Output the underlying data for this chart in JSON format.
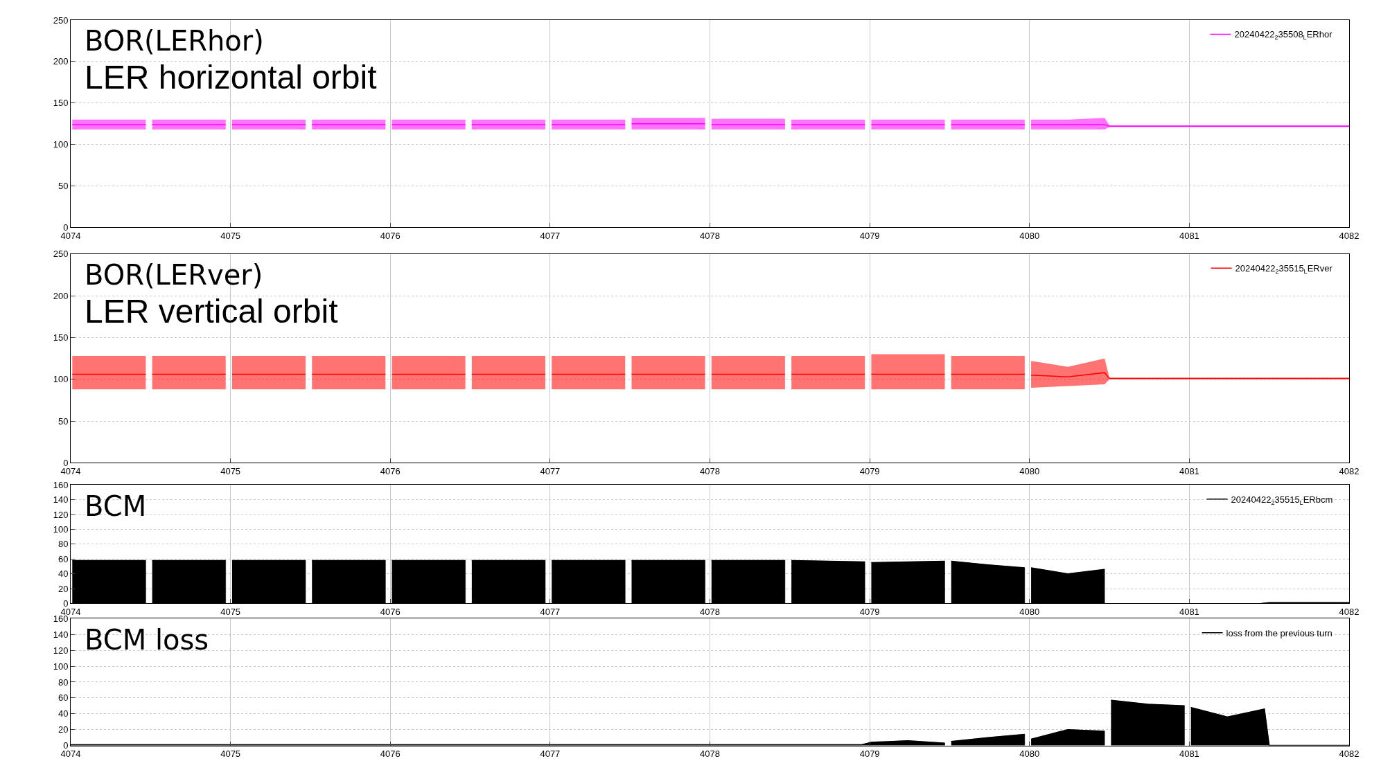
{
  "chart_data": [
    {
      "type": "line",
      "annotations": [
        "BOR(LERhor)",
        "LER horizontal orbit"
      ],
      "legend": "top right",
      "grid": true,
      "xlim": [
        4074,
        4082
      ],
      "xticks": [
        4074,
        4075,
        4076,
        4077,
        4078,
        4079,
        4080,
        4081,
        4082
      ],
      "ylim": [
        0,
        250
      ],
      "yticks": [
        0,
        50,
        100,
        150,
        200,
        250
      ],
      "series": [
        {
          "name": "20240422$_{2}$35508$_{L}$ERhor",
          "color": "#ff00ff",
          "x": [
            4074.01,
            4074.24,
            4074.47,
            4074.485,
            4074.51,
            4074.74,
            4074.97,
            4074.985,
            4075.01,
            4075.24,
            4075.47,
            4075.485,
            4075.51,
            4075.74,
            4075.97,
            4075.985,
            4076.01,
            4076.24,
            4076.47,
            4076.485,
            4076.51,
            4076.74,
            4076.97,
            4076.985,
            4077.01,
            4077.24,
            4077.47,
            4077.485,
            4077.51,
            4077.74,
            4077.97,
            4077.985,
            4078.01,
            4078.24,
            4078.47,
            4078.485,
            4078.51,
            4078.74,
            4078.97,
            4078.985,
            4079.01,
            4079.24,
            4079.47,
            4079.485,
            4079.51,
            4079.74,
            4079.97,
            4079.985,
            4080.01,
            4080.24,
            4080.47,
            4080.5,
            4081.25,
            4082
          ],
          "values": [
            124,
            124,
            124,
            null,
            124,
            124,
            124,
            null,
            124,
            124,
            124,
            null,
            124,
            124,
            124,
            null,
            124,
            124,
            124,
            null,
            124,
            124,
            124,
            null,
            124,
            124,
            124,
            null,
            125,
            125,
            125,
            null,
            124,
            124,
            124,
            null,
            124,
            124,
            124,
            null,
            124,
            124,
            124,
            null,
            124,
            124,
            124,
            null,
            124,
            124,
            124,
            122,
            122,
            122
          ],
          "lower": [
            118,
            118,
            118,
            null,
            118,
            118,
            118,
            null,
            118,
            118,
            118,
            null,
            118,
            118,
            118,
            null,
            118,
            118,
            118,
            null,
            118,
            118,
            118,
            null,
            118,
            118,
            118,
            null,
            118,
            118,
            118,
            null,
            118,
            118,
            118,
            null,
            118,
            118,
            118,
            null,
            118,
            118,
            118,
            null,
            118,
            118,
            118,
            null,
            118,
            118,
            118,
            121,
            121,
            121
          ],
          "upper": [
            130,
            130,
            130,
            null,
            130,
            130,
            130,
            null,
            130,
            130,
            130,
            null,
            130,
            130,
            130,
            null,
            130,
            130,
            130,
            null,
            130,
            130,
            130,
            null,
            130,
            130,
            130,
            null,
            132,
            132,
            132,
            null,
            131,
            131,
            131,
            null,
            130,
            130,
            130,
            null,
            130,
            130,
            130,
            null,
            130,
            130,
            130,
            null,
            130,
            130,
            132,
            123,
            123,
            123
          ]
        }
      ]
    },
    {
      "type": "line",
      "annotations": [
        "BOR(LERver)",
        "LER vertical orbit"
      ],
      "legend": "top right",
      "grid": true,
      "xlim": [
        4074,
        4082
      ],
      "xticks": [
        4074,
        4075,
        4076,
        4077,
        4078,
        4079,
        4080,
        4081,
        4082
      ],
      "ylim": [
        0,
        250
      ],
      "yticks": [
        0,
        50,
        100,
        150,
        200,
        250
      ],
      "series": [
        {
          "name": "20240422$_{2}$35515$_{L}$ERver",
          "color": "#ff0000",
          "x": [
            4074.01,
            4074.24,
            4074.47,
            4074.485,
            4074.51,
            4074.74,
            4074.97,
            4074.985,
            4075.01,
            4075.24,
            4075.47,
            4075.485,
            4075.51,
            4075.74,
            4075.97,
            4075.985,
            4076.01,
            4076.24,
            4076.47,
            4076.485,
            4076.51,
            4076.74,
            4076.97,
            4076.985,
            4077.01,
            4077.24,
            4077.47,
            4077.485,
            4077.51,
            4077.74,
            4077.97,
            4077.985,
            4078.01,
            4078.24,
            4078.47,
            4078.485,
            4078.51,
            4078.74,
            4078.97,
            4078.985,
            4079.01,
            4079.24,
            4079.47,
            4079.485,
            4079.51,
            4079.74,
            4079.97,
            4079.985,
            4080.01,
            4080.24,
            4080.47,
            4080.5,
            4081.25,
            4082
          ],
          "values": [
            106,
            106,
            106,
            null,
            106,
            106,
            106,
            null,
            106,
            106,
            106,
            null,
            106,
            106,
            106,
            null,
            106,
            106,
            106,
            null,
            106,
            106,
            106,
            null,
            106,
            106,
            106,
            null,
            106,
            106,
            106,
            null,
            106,
            106,
            106,
            null,
            106,
            106,
            106,
            null,
            106,
            106,
            106,
            null,
            106,
            106,
            106,
            null,
            105,
            103,
            108,
            101,
            101,
            101
          ],
          "lower": [
            88,
            88,
            88,
            null,
            88,
            88,
            88,
            null,
            88,
            88,
            88,
            null,
            88,
            88,
            88,
            null,
            88,
            88,
            88,
            null,
            88,
            88,
            88,
            null,
            88,
            88,
            88,
            null,
            88,
            88,
            88,
            null,
            88,
            88,
            88,
            null,
            88,
            88,
            88,
            null,
            88,
            88,
            88,
            null,
            88,
            88,
            88,
            null,
            90,
            92,
            94,
            100,
            100,
            100
          ],
          "upper": [
            128,
            128,
            128,
            null,
            128,
            128,
            128,
            null,
            128,
            128,
            128,
            null,
            128,
            128,
            128,
            null,
            128,
            128,
            128,
            null,
            128,
            128,
            128,
            null,
            128,
            128,
            128,
            null,
            128,
            128,
            128,
            null,
            128,
            128,
            128,
            null,
            128,
            128,
            128,
            null,
            130,
            130,
            130,
            null,
            128,
            128,
            128,
            null,
            122,
            115,
            125,
            102,
            102,
            102
          ]
        }
      ]
    },
    {
      "type": "area",
      "annotations": [
        "BCM"
      ],
      "legend": "top right",
      "grid": true,
      "xlim": [
        4074,
        4082
      ],
      "xticks": [
        4074,
        4075,
        4076,
        4077,
        4078,
        4079,
        4080,
        4081,
        4082
      ],
      "ylim": [
        0,
        160
      ],
      "yticks": [
        0,
        20,
        40,
        60,
        80,
        100,
        120,
        140,
        160
      ],
      "series": [
        {
          "name": "20240422$_{2}$35515$_{L}$ERbcm",
          "color": "#000000",
          "x": [
            4074.01,
            4074.24,
            4074.47,
            4074.485,
            4074.51,
            4074.74,
            4074.97,
            4074.985,
            4075.01,
            4075.24,
            4075.47,
            4075.485,
            4075.51,
            4075.74,
            4075.97,
            4075.985,
            4076.01,
            4076.24,
            4076.47,
            4076.485,
            4076.51,
            4076.74,
            4076.97,
            4076.985,
            4077.01,
            4077.24,
            4077.47,
            4077.485,
            4077.51,
            4077.74,
            4077.97,
            4077.985,
            4078.01,
            4078.24,
            4078.47,
            4078.485,
            4078.51,
            4078.74,
            4078.97,
            4078.985,
            4079.01,
            4079.24,
            4079.47,
            4079.485,
            4079.51,
            4079.74,
            4079.97,
            4079.985,
            4080.01,
            4080.24,
            4080.47,
            4080.485,
            4081.45,
            4081.5,
            4082
          ],
          "values": [
            58,
            58,
            58,
            null,
            58,
            58,
            58,
            null,
            58,
            58,
            58,
            null,
            58,
            58,
            58,
            null,
            58,
            58,
            58,
            null,
            58,
            58,
            58,
            null,
            58,
            58,
            58,
            null,
            58,
            58,
            58,
            null,
            58,
            58,
            58,
            null,
            58,
            57,
            56,
            null,
            55,
            56,
            57,
            null,
            57,
            52,
            48,
            null,
            48,
            40,
            46,
            null,
            0,
            1,
            1
          ]
        }
      ]
    },
    {
      "type": "area",
      "annotations": [
        "BCM loss"
      ],
      "legend": "top right",
      "grid": true,
      "xlim": [
        4074,
        4082
      ],
      "xticks": [
        4074,
        4075,
        4076,
        4077,
        4078,
        4079,
        4080,
        4081,
        4082
      ],
      "ylim": [
        0,
        160
      ],
      "yticks": [
        0,
        20,
        40,
        60,
        80,
        100,
        120,
        140,
        160
      ],
      "series": [
        {
          "name": "loss from the previous turn",
          "color": "#000000",
          "x": [
            4074.0,
            4078.95,
            4079.01,
            4079.24,
            4079.47,
            4079.485,
            4079.51,
            4079.74,
            4079.97,
            4079.985,
            4080.01,
            4080.24,
            4080.47,
            4080.485,
            4080.51,
            4080.74,
            4080.97,
            4080.985,
            4081.01,
            4081.24,
            4081.47,
            4081.5,
            4082
          ],
          "values": [
            1,
            1,
            4,
            6,
            3,
            null,
            5,
            10,
            14,
            null,
            8,
            20,
            18,
            null,
            57,
            52,
            50,
            null,
            48,
            36,
            46,
            0,
            0
          ]
        }
      ]
    }
  ]
}
